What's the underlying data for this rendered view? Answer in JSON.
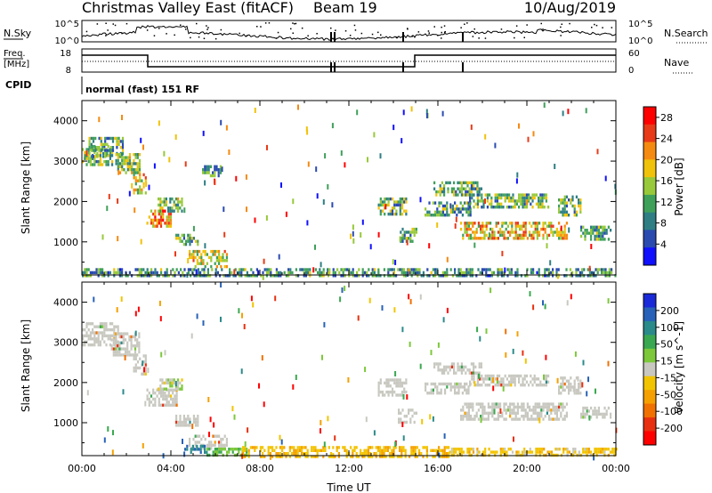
{
  "header": {
    "title": "Christmas Valley East (fitACF)",
    "beam": "Beam 19",
    "date": "10/Aug/2019"
  },
  "summary_panels": {
    "nsky_label": "N.Sky",
    "nsky_ticks": [
      "10^5",
      "10^0"
    ],
    "nsearch_label": "N.Search",
    "nsearch_ticks": [
      "10^5",
      "10^0"
    ],
    "freq_label_1": "Freq.",
    "freq_label_2": "[MHz]",
    "freq_ticks": [
      "18",
      "8"
    ],
    "nave_label": "Nave",
    "nave_ticks": [
      "60",
      "0"
    ],
    "cpid_label": "CPID",
    "cpid_text": "normal (fast) 151 RF"
  },
  "colors": {
    "power_scale": [
      "#1010ff",
      "#2a4ab0",
      "#2e7e84",
      "#3fa05a",
      "#97c93a",
      "#f0c20a",
      "#f58a10",
      "#e83a18",
      "#ff0000"
    ],
    "velocity_scale": [
      "#1a2ad8",
      "#2862b8",
      "#2b8a8a",
      "#3aa850",
      "#7cc83a",
      "#c8c8c0",
      "#f2c400",
      "#f5a000",
      "#f07000",
      "#e83010",
      "#ff0000"
    ],
    "ground_scatter_like": "#c8c8c0"
  },
  "chart_data": [
    {
      "type": "heatmap",
      "panel": "power",
      "ylabel": "Slant Range [km]",
      "ylim": [
        180,
        4500
      ],
      "yticks": [
        "1000",
        "2000",
        "3000",
        "4000"
      ],
      "xlim": [
        0,
        24
      ],
      "xticks": [
        "00:00",
        "04:00",
        "08:00",
        "12:00",
        "16:00",
        "20:00",
        "00:00"
      ],
      "xlabel": "Time UT",
      "colorbar_label": "Power [dB]",
      "colorbar_ticks": [
        "4",
        "8",
        "12",
        "16",
        "20",
        "24",
        "28"
      ],
      "colorbar_range": [
        0,
        30
      ],
      "regions": [
        {
          "t0": 0.0,
          "t1": 1.4,
          "r0": 2950,
          "r1": 3400,
          "val": 13
        },
        {
          "t0": 0.3,
          "t1": 1.8,
          "r0": 3150,
          "r1": 3600,
          "val": 12
        },
        {
          "t0": 1.5,
          "t1": 2.6,
          "r0": 2700,
          "r1": 3200,
          "val": 14
        },
        {
          "t0": 2.3,
          "t1": 2.9,
          "r0": 2200,
          "r1": 2700,
          "val": 17
        },
        {
          "t0": 2.9,
          "t1": 4.0,
          "r0": 1400,
          "r1": 1800,
          "val": 21
        },
        {
          "t0": 3.4,
          "t1": 4.5,
          "r0": 1800,
          "r1": 2100,
          "val": 14
        },
        {
          "t0": 4.2,
          "t1": 5.2,
          "r0": 950,
          "r1": 1200,
          "val": 13
        },
        {
          "t0": 4.8,
          "t1": 6.5,
          "r0": 380,
          "r1": 800,
          "val": 17
        },
        {
          "t0": 5.4,
          "t1": 6.2,
          "r0": 2650,
          "r1": 2900,
          "val": 10
        },
        {
          "t0": 13.3,
          "t1": 14.6,
          "r0": 1700,
          "r1": 2100,
          "val": 13
        },
        {
          "t0": 14.2,
          "t1": 15.0,
          "r0": 1000,
          "r1": 1350,
          "val": 12
        },
        {
          "t0": 15.8,
          "t1": 18.0,
          "r0": 2200,
          "r1": 2500,
          "val": 12
        },
        {
          "t0": 15.4,
          "t1": 17.5,
          "r0": 1700,
          "r1": 2000,
          "val": 11
        },
        {
          "t0": 17.4,
          "t1": 21.0,
          "r0": 1900,
          "r1": 2200,
          "val": 12
        },
        {
          "t0": 17.0,
          "t1": 21.8,
          "r0": 1100,
          "r1": 1500,
          "val": 18
        },
        {
          "t0": 21.4,
          "t1": 22.4,
          "r0": 1700,
          "r1": 2150,
          "val": 12
        },
        {
          "t0": 22.4,
          "t1": 23.8,
          "r0": 1100,
          "r1": 1400,
          "val": 11
        },
        {
          "t0": 0.0,
          "t1": 24.0,
          "r0": 180,
          "r1": 350,
          "val": 10
        }
      ]
    },
    {
      "type": "heatmap",
      "panel": "velocity",
      "ylabel": "Slant Range [km]",
      "ylim": [
        180,
        4500
      ],
      "yticks": [
        "1000",
        "2000",
        "3000",
        "4000"
      ],
      "xlim": [
        0,
        24
      ],
      "xticks": [
        "00:00",
        "04:00",
        "08:00",
        "12:00",
        "16:00",
        "20:00",
        "00:00"
      ],
      "xlabel": "Time UT",
      "colorbar_label": "Velocity [m s^-1]",
      "colorbar_ticks": [
        "200",
        "100",
        "50",
        "15",
        "-15",
        "-50",
        "-100",
        "-200"
      ],
      "colorbar_range": [
        -250,
        250
      ],
      "regions": [
        {
          "t0": 0.0,
          "t1": 1.6,
          "r0": 2950,
          "r1": 3500,
          "val": 0
        },
        {
          "t0": 1.3,
          "t1": 2.6,
          "r0": 2700,
          "r1": 3250,
          "val": 0
        },
        {
          "t0": 2.3,
          "t1": 2.9,
          "r0": 2200,
          "r1": 2700,
          "val": 0
        },
        {
          "t0": 2.9,
          "t1": 4.3,
          "r0": 1400,
          "r1": 1850,
          "val": 0
        },
        {
          "t0": 3.4,
          "t1": 4.5,
          "r0": 1800,
          "r1": 2100,
          "val": 5
        },
        {
          "t0": 4.2,
          "t1": 5.2,
          "r0": 950,
          "r1": 1200,
          "val": 0
        },
        {
          "t0": 4.8,
          "t1": 6.5,
          "r0": 380,
          "r1": 700,
          "val": 0
        },
        {
          "t0": 4.6,
          "t1": 5.6,
          "r0": 250,
          "r1": 450,
          "val": 140
        },
        {
          "t0": 5.6,
          "t1": 7.4,
          "r0": 200,
          "r1": 380,
          "val": 40
        },
        {
          "t0": 7.2,
          "t1": 16.5,
          "r0": 180,
          "r1": 420,
          "val": -40
        },
        {
          "t0": 16.5,
          "t1": 24.0,
          "r0": 180,
          "r1": 380,
          "val": -30
        },
        {
          "t0": 13.3,
          "t1": 14.6,
          "r0": 1700,
          "r1": 2100,
          "val": 0
        },
        {
          "t0": 14.2,
          "t1": 15.0,
          "r0": 1000,
          "r1": 1350,
          "val": 0
        },
        {
          "t0": 15.8,
          "t1": 18.0,
          "r0": 2200,
          "r1": 2500,
          "val": 0
        },
        {
          "t0": 15.4,
          "t1": 17.5,
          "r0": 1700,
          "r1": 2000,
          "val": 0
        },
        {
          "t0": 17.4,
          "t1": 21.0,
          "r0": 1900,
          "r1": 2200,
          "val": 0
        },
        {
          "t0": 17.0,
          "t1": 21.8,
          "r0": 1100,
          "r1": 1500,
          "val": 0
        },
        {
          "t0": 21.4,
          "t1": 22.4,
          "r0": 1700,
          "r1": 2150,
          "val": 0
        },
        {
          "t0": 22.4,
          "t1": 23.8,
          "r0": 1100,
          "r1": 1400,
          "val": 0
        }
      ]
    }
  ]
}
